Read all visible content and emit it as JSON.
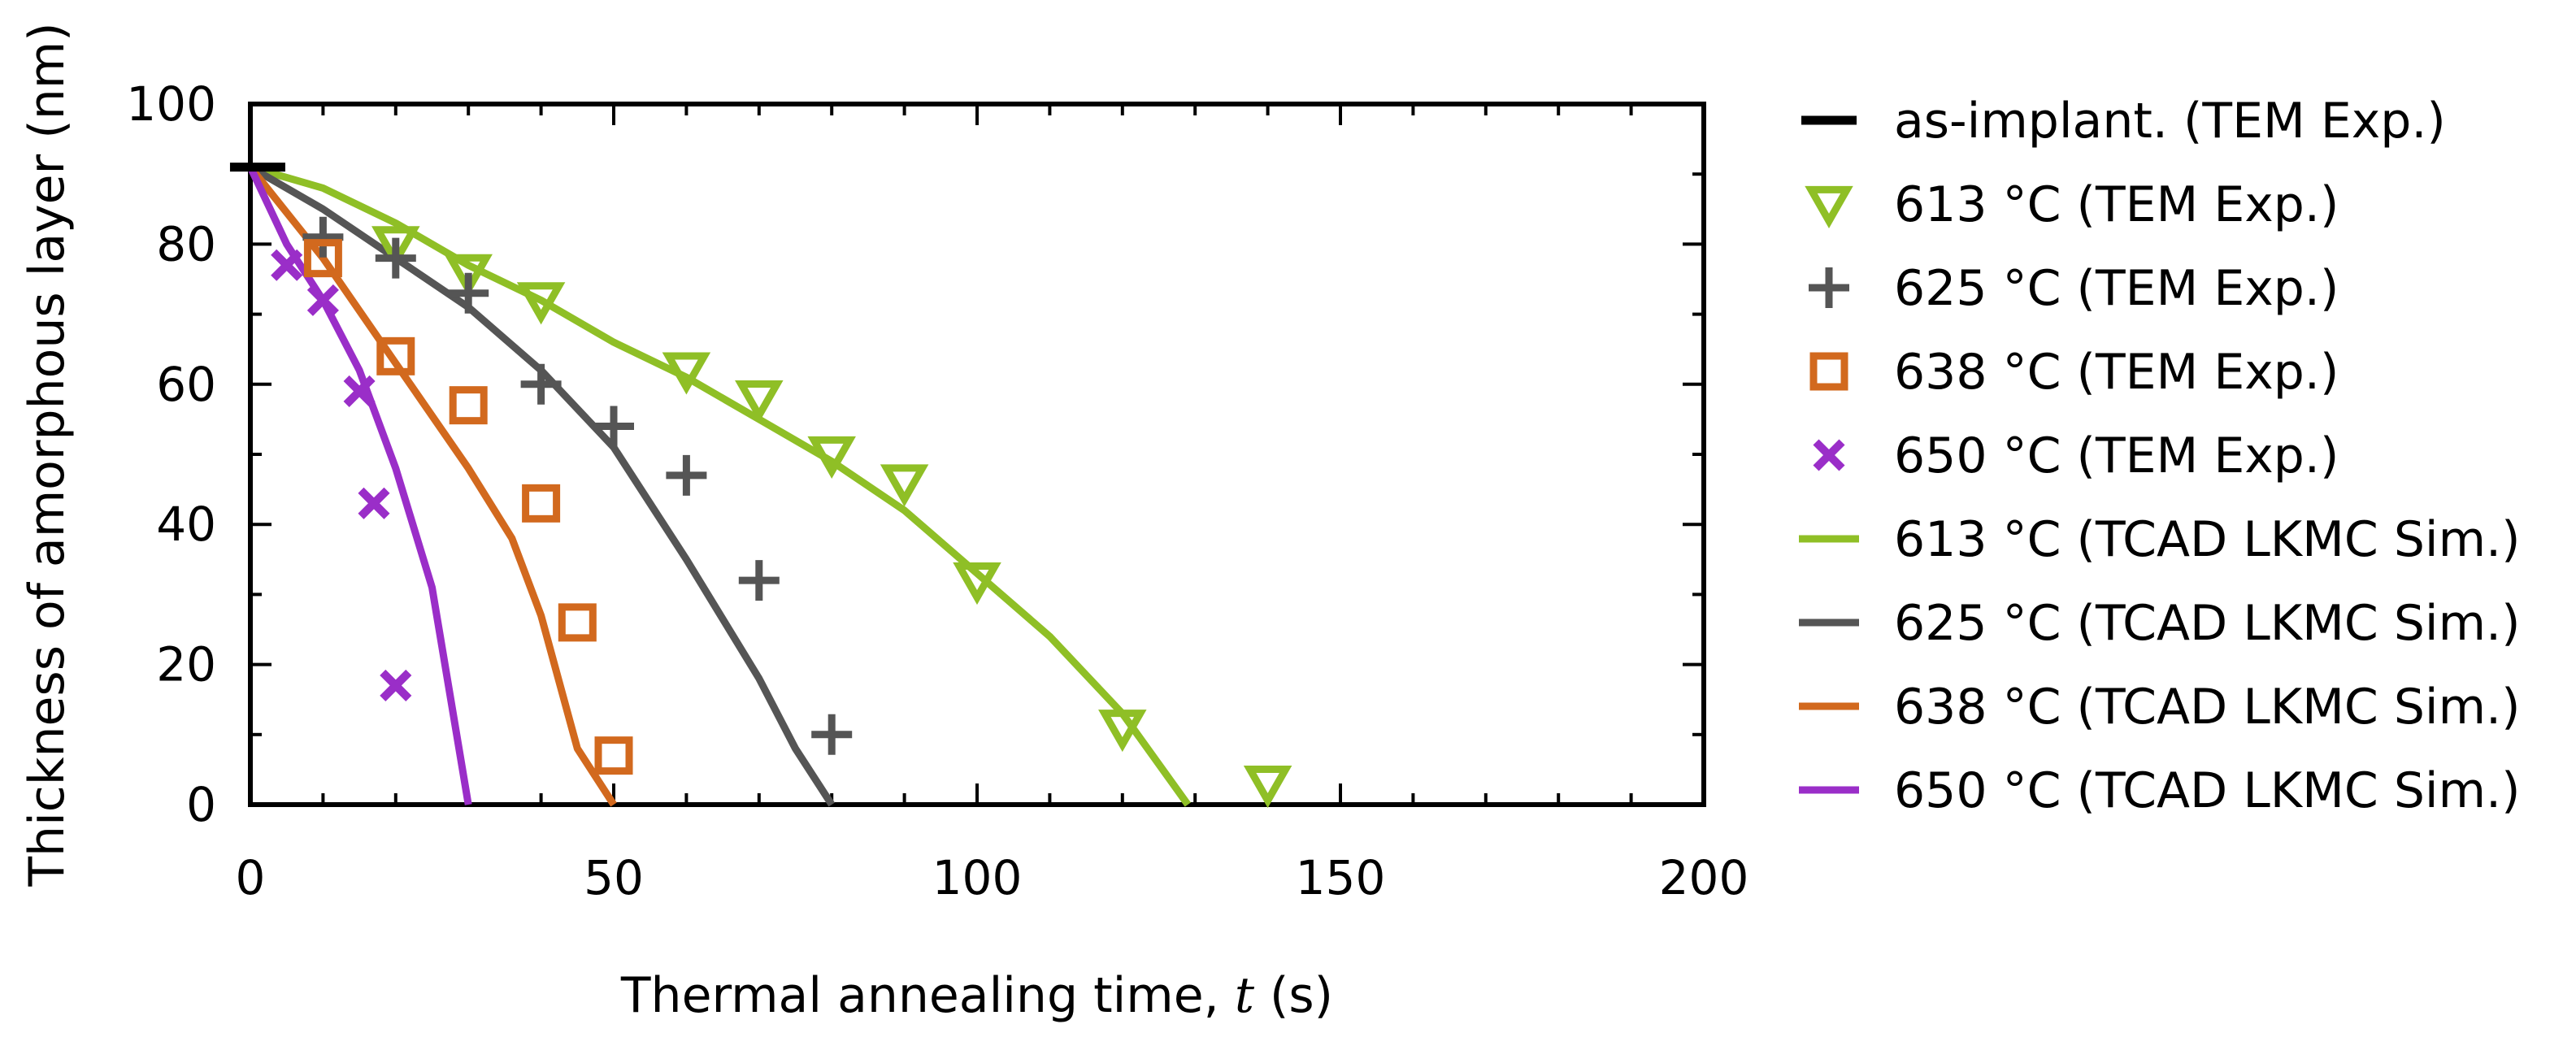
{
  "chart_data": {
    "type": "scatter",
    "title": "",
    "xlabel": {
      "prefix": "Thermal annealing time, ",
      "var": "t",
      "suffix": " (s)"
    },
    "ylabel": "Thickness of amorphous layer (nm)",
    "xlim": [
      0,
      200
    ],
    "ylim": [
      0,
      100
    ],
    "xticks": [
      0,
      50,
      100,
      150,
      200
    ],
    "xtick_labels": [
      "0",
      "50",
      "100",
      "150",
      "200"
    ],
    "yticks": [
      0,
      20,
      40,
      60,
      80,
      100
    ],
    "ytick_labels": [
      "0",
      "20",
      "40",
      "60",
      "80",
      "100"
    ],
    "xminor": [
      10,
      20,
      30,
      40,
      60,
      70,
      80,
      90,
      110,
      120,
      130,
      140,
      160,
      170,
      180,
      190
    ],
    "yminor": [
      10,
      30,
      50,
      70,
      90
    ],
    "grid": false,
    "legend_position": "outside-right",
    "series": [
      {
        "name": "as-implant. (TEM Exp.)",
        "kind": "marker",
        "marker": "hbar",
        "color": "#000000",
        "x": [
          1
        ],
        "y": [
          91
        ]
      },
      {
        "name": "613 °C (TEM Exp.)",
        "kind": "marker",
        "marker": "triangle-down",
        "color": "#8fbf26",
        "x": [
          20,
          30,
          40,
          60,
          70,
          80,
          90,
          100,
          120,
          140
        ],
        "y": [
          80,
          76,
          72,
          62,
          58,
          50,
          46,
          32,
          11,
          3
        ]
      },
      {
        "name": "625 °C (TEM Exp.)",
        "kind": "marker",
        "marker": "plus",
        "color": "#555555",
        "x": [
          10,
          20,
          30,
          40,
          50,
          60,
          70,
          80
        ],
        "y": [
          81,
          78,
          73,
          60,
          54,
          47,
          32,
          10
        ]
      },
      {
        "name": "638 °C (TEM Exp.)",
        "kind": "marker",
        "marker": "square",
        "color": "#d2691e",
        "x": [
          10,
          20,
          30,
          40,
          45,
          50
        ],
        "y": [
          78,
          64,
          57,
          43,
          26,
          7
        ]
      },
      {
        "name": "650 °C (TEM Exp.)",
        "kind": "marker",
        "marker": "cross",
        "color": "#9a2ec8",
        "x": [
          5,
          10,
          15,
          17,
          20
        ],
        "y": [
          77,
          72,
          59,
          43,
          17
        ]
      },
      {
        "name": "613 °C (TCAD LKMC Sim.)",
        "kind": "line",
        "color": "#8fbf26",
        "x": [
          0,
          10,
          20,
          30,
          40,
          50,
          60,
          70,
          80,
          90,
          100,
          110,
          120,
          129
        ],
        "y": [
          91,
          88,
          83,
          77,
          72,
          66,
          61,
          55,
          49,
          42,
          33,
          24,
          13,
          0
        ]
      },
      {
        "name": "625 °C (TCAD LKMC Sim.)",
        "kind": "line",
        "color": "#555555",
        "x": [
          0,
          10,
          20,
          30,
          40,
          50,
          60,
          70,
          75,
          80
        ],
        "y": [
          91,
          85,
          78,
          71,
          62,
          51,
          35,
          18,
          8,
          0
        ]
      },
      {
        "name": "638 °C (TCAD LKMC Sim.)",
        "kind": "line",
        "color": "#d2691e",
        "x": [
          0,
          10,
          20,
          30,
          36,
          40,
          45,
          50
        ],
        "y": [
          91,
          78,
          63,
          48,
          38,
          27,
          8,
          0
        ]
      },
      {
        "name": "650 °C (TCAD LKMC Sim.)",
        "kind": "line",
        "color": "#9a2ec8",
        "x": [
          0,
          5,
          10,
          15,
          20,
          25,
          30
        ],
        "y": [
          91,
          80,
          72,
          62,
          48,
          31,
          0
        ]
      }
    ]
  }
}
